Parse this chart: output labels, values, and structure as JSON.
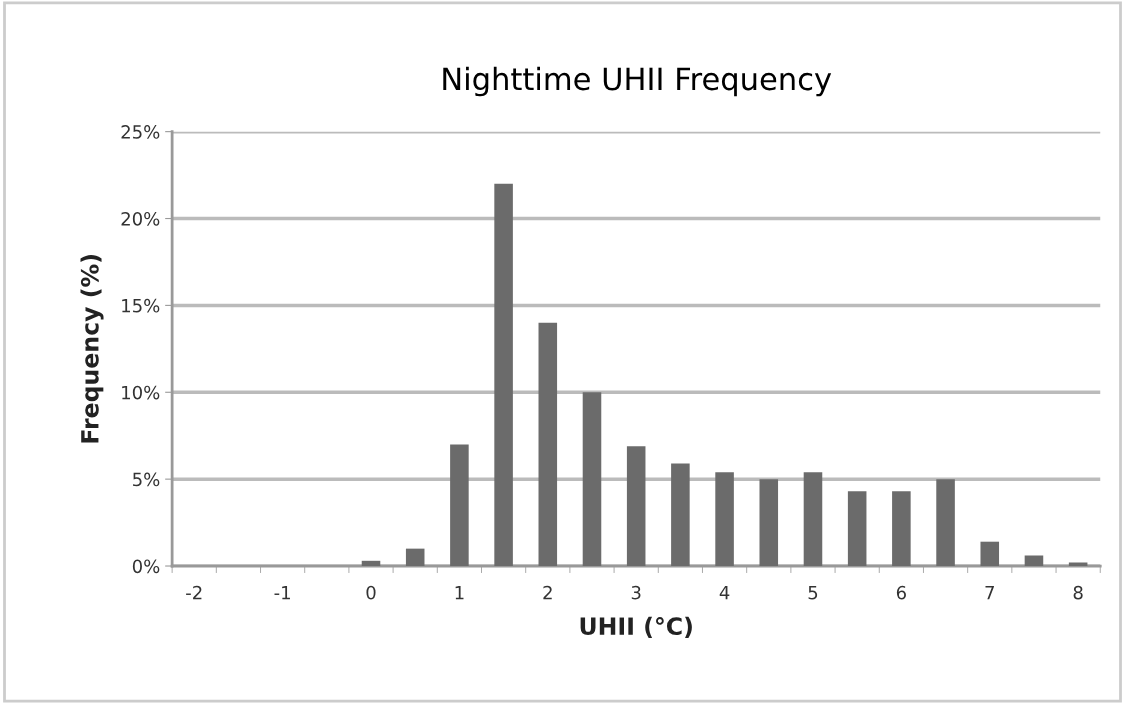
{
  "chart_data": {
    "type": "bar",
    "title": "Nighttime UHII Frequency",
    "xlabel": "UHII (°C)",
    "ylabel": "Frequency (%)",
    "categories": [
      "-2",
      null,
      "-1",
      null,
      "0",
      null,
      "1",
      null,
      "2",
      null,
      "3",
      null,
      "4",
      null,
      "5",
      null,
      "6",
      null,
      "7",
      null,
      "8"
    ],
    "values": [
      0,
      0,
      0,
      0,
      0.3,
      1.0,
      7.0,
      22.0,
      14.0,
      10.0,
      6.9,
      5.9,
      5.4,
      5.0,
      5.4,
      4.3,
      4.3,
      5.0,
      1.4,
      0.6,
      0.2
    ],
    "color": "#6b6b6b",
    "ylim": [
      0,
      25
    ],
    "yticks": [
      {
        "value": 0,
        "label": "0%"
      },
      {
        "value": 5,
        "label": "5%"
      },
      {
        "value": 10,
        "label": "10%"
      },
      {
        "value": 15,
        "label": "15%"
      },
      {
        "value": 20,
        "label": "20%"
      },
      {
        "value": 25,
        "label": "25%"
      }
    ],
    "grid": "y",
    "legend": false
  }
}
